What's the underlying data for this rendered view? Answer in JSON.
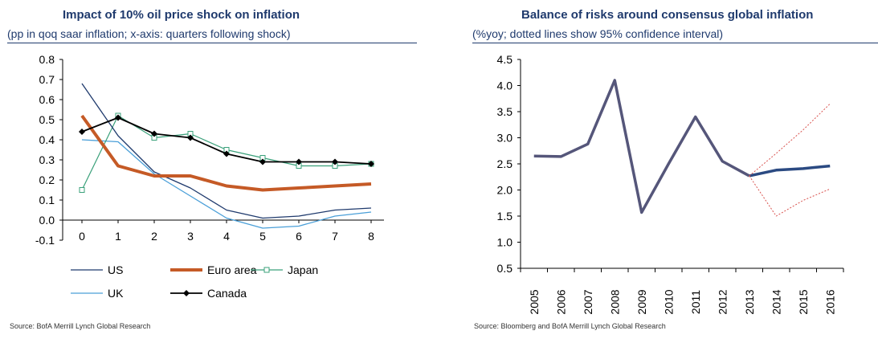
{
  "chart_data": [
    {
      "type": "line",
      "title": "Impact of 10% oil price shock on inflation",
      "subtitle": "(pp in qoq saar inflation; x-axis: quarters following shock)",
      "source": "Source: BofA Merrill Lynch Global Research",
      "x": [
        0,
        1,
        2,
        3,
        4,
        5,
        6,
        7,
        8
      ],
      "ylim": [
        -0.1,
        0.8
      ],
      "yticks": [
        "-0.1",
        "0.0",
        "0.1",
        "0.2",
        "0.3",
        "0.4",
        "0.5",
        "0.6",
        "0.7",
        "0.8"
      ],
      "xticks": [
        "0",
        "1",
        "2",
        "3",
        "4",
        "5",
        "6",
        "7",
        "8"
      ],
      "legend_position": "bottom",
      "series": [
        {
          "name": "US",
          "color": "#1f3a6d",
          "style": "thin",
          "values": [
            0.68,
            0.42,
            0.24,
            0.16,
            0.05,
            0.01,
            0.02,
            0.05,
            0.06
          ]
        },
        {
          "name": "Euro area",
          "color": "#c55a26",
          "style": "thick",
          "values": [
            0.52,
            0.27,
            0.22,
            0.22,
            0.17,
            0.15,
            0.16,
            0.17,
            0.18
          ]
        },
        {
          "name": "Japan",
          "color": "#3aa07a",
          "style": "square-markers",
          "values": [
            0.15,
            0.52,
            0.41,
            0.43,
            0.35,
            0.31,
            0.27,
            0.27,
            0.28
          ]
        },
        {
          "name": "UK",
          "color": "#4a9fd8",
          "style": "thin",
          "values": [
            0.4,
            0.39,
            0.23,
            0.12,
            0.01,
            -0.04,
            -0.03,
            0.02,
            0.04
          ]
        },
        {
          "name": "Canada",
          "color": "#000000",
          "style": "diamond-markers",
          "values": [
            0.44,
            0.51,
            0.43,
            0.41,
            0.33,
            0.29,
            0.29,
            0.29,
            0.28
          ]
        }
      ]
    },
    {
      "type": "line",
      "title": "Balance of risks around consensus global inflation",
      "subtitle": "(%yoy; dotted lines show 95% confidence interval)",
      "source": "Source: Bloomberg and BofA Merrill Lynch Global Research",
      "categories": [
        "2005",
        "2006",
        "2007",
        "2008",
        "2009",
        "2010",
        "2011",
        "2012",
        "2013",
        "2014",
        "2015",
        "2016"
      ],
      "ylim": [
        0.5,
        4.5
      ],
      "yticks": [
        "0.5",
        "1.0",
        "1.5",
        "2.0",
        "2.5",
        "3.0",
        "3.5",
        "4.0",
        "4.5"
      ],
      "series": [
        {
          "color": "#55567a",
          "values": [
            2.65,
            2.64,
            2.88,
            4.1,
            1.57,
            2.5,
            3.4,
            2.55,
            2.27,
            null,
            null,
            null
          ]
        },
        {
          "color": "#2b4a82",
          "values": [
            null,
            null,
            null,
            null,
            null,
            null,
            null,
            null,
            2.27,
            2.38,
            2.41,
            2.46
          ]
        },
        {
          "color": "#d9534f",
          "style": "dotted",
          "values": [
            null,
            null,
            null,
            null,
            null,
            null,
            null,
            null,
            2.27,
            2.7,
            3.15,
            3.65
          ]
        },
        {
          "color": "#d9534f",
          "style": "dotted",
          "values": [
            null,
            null,
            null,
            null,
            null,
            null,
            null,
            null,
            2.27,
            1.5,
            1.8,
            2.02
          ]
        }
      ]
    }
  ]
}
